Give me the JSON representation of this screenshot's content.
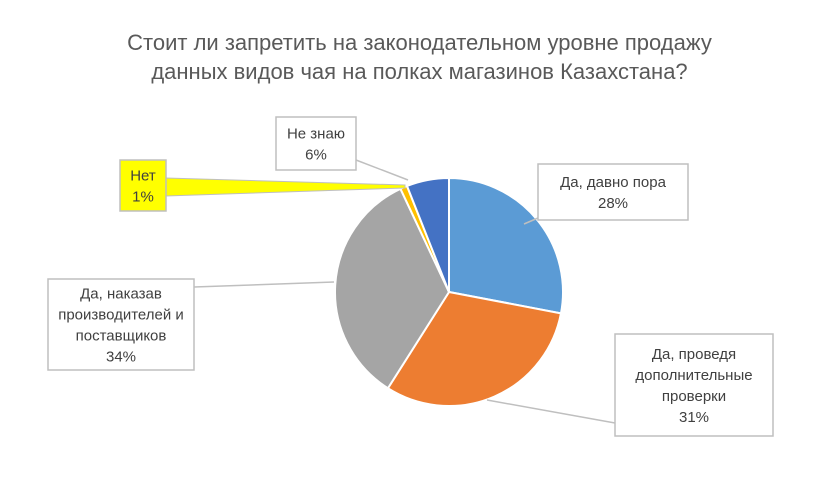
{
  "chart_data": {
    "type": "pie",
    "title_lines": [
      "Стоит ли запретить на законодательном уровне продажу",
      "данных видов чая на полках магазинов Казахстана?"
    ],
    "slices": [
      {
        "label_lines": [
          "Да, давно пора"
        ],
        "value": 28,
        "value_label": "28%",
        "color": "#5b9bd5"
      },
      {
        "label_lines": [
          "Да, проведя",
          "дополнительные",
          "проверки"
        ],
        "value": 31,
        "value_label": "31%",
        "color": "#ed7d31"
      },
      {
        "label_lines": [
          "Да, наказав",
          "производителей и",
          "поставщиков"
        ],
        "value": 34,
        "value_label": "34%",
        "color": "#a5a5a5"
      },
      {
        "label_lines": [
          "Нет"
        ],
        "value": 1,
        "value_label": "1%",
        "color": "#ffc000",
        "highlight": "#ffff00"
      },
      {
        "label_lines": [
          "Не знаю"
        ],
        "value": 6,
        "value_label": "6%",
        "color": "#4472c4"
      }
    ],
    "legend": "none",
    "data_labels": "callouts"
  }
}
